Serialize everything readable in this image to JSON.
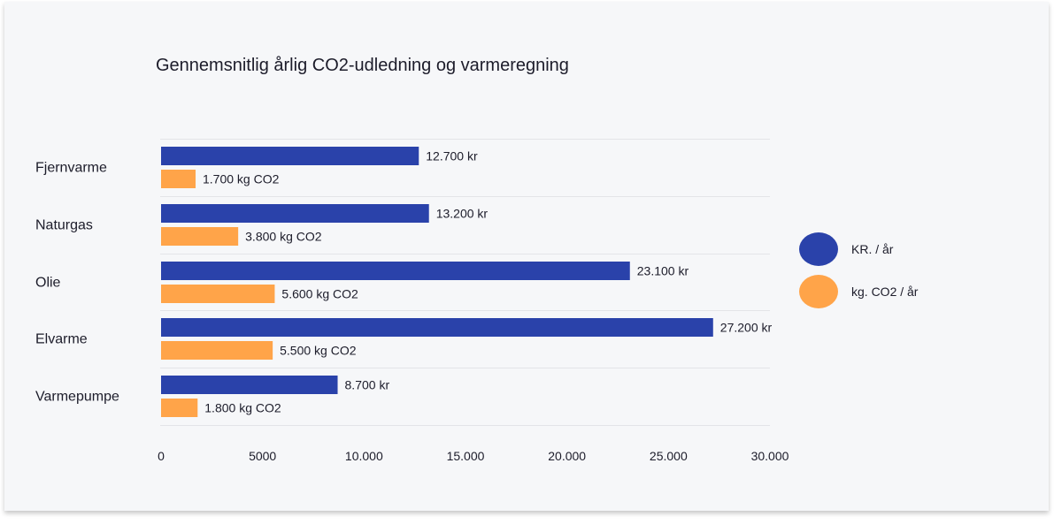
{
  "colors": {
    "kr": "#2a42aa",
    "co2": "#ffa449",
    "grid": "#e3e4e8",
    "text": "#1c1c2a",
    "background": "#f6f7f9"
  },
  "legend": {
    "items": [
      {
        "label": "KR. / år",
        "color": "#2a42aa"
      },
      {
        "label": "kg. CO2 / år",
        "color": "#ffa449"
      }
    ]
  },
  "chart_data": {
    "type": "bar",
    "orientation": "horizontal",
    "title": "Gennemsnitlig årlig CO2-udledning og varmeregning",
    "categories": [
      "Fjernvarme",
      "Naturgas",
      "Olie",
      "Elvarme",
      "Varmepumpe"
    ],
    "series": [
      {
        "name": "KR. / år",
        "values": [
          12700,
          13200,
          23100,
          27200,
          8700
        ],
        "labels": [
          "12.700 kr",
          "13.200 kr",
          "23.100 kr",
          "27.200 kr",
          "8.700 kr"
        ]
      },
      {
        "name": "kg. CO2 / år",
        "values": [
          1700,
          3800,
          5600,
          5500,
          1800
        ],
        "labels": [
          "1.700 kg CO2",
          "3.800 kg CO2",
          "5.600 kg CO2",
          "5.500 kg CO2",
          "1.800 kg CO2"
        ]
      }
    ],
    "xlim": [
      0,
      30000
    ],
    "xticks": [
      0,
      5000,
      10000,
      15000,
      20000,
      25000,
      30000
    ],
    "xtick_labels": [
      "0",
      "5000",
      "10.000",
      "15.000",
      "20.000",
      "25.000",
      "30.000"
    ],
    "grid": true,
    "legend_position": "right"
  }
}
